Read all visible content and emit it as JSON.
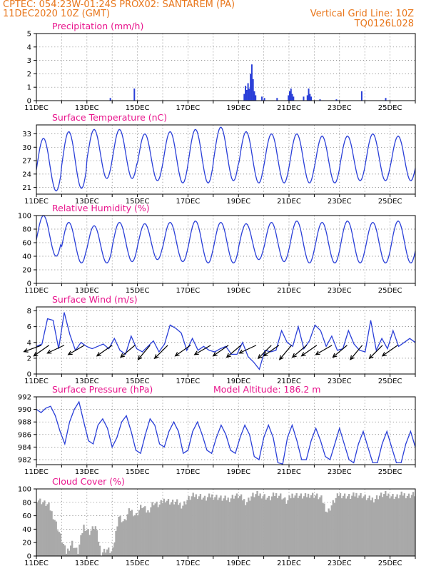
{
  "header": {
    "station": "CPTEC:   054:23W-01:24S   PROX02: SANTAREM (PA)",
    "date": "11DEC2020 10Z (GMT)",
    "grid_line": "Vertical Grid Line: 10Z",
    "code": "TQ0126L028"
  },
  "colors": {
    "header": "#e8761b",
    "title": "#e8148c",
    "line": "#2a3fd8",
    "cloud": "#a9a9a9",
    "arrow": "#000000"
  },
  "chart_data": [
    {
      "type": "bar",
      "title": "Precipitation (mm/h)",
      "ylim": [
        0,
        5
      ],
      "yticks": [
        "0",
        "1",
        "2",
        "3",
        "4",
        "5"
      ],
      "xticks": [
        "11DEC",
        "13DEC",
        "15DEC",
        "17DEC",
        "19DEC",
        "21DEC",
        "23DEC",
        "25DEC"
      ],
      "x_range_days": [
        0,
        15
      ],
      "bars": [
        [
          2.9,
          0.2
        ],
        [
          3.85,
          0.9
        ],
        [
          8.2,
          0.5
        ],
        [
          8.25,
          1.1
        ],
        [
          8.3,
          0.8
        ],
        [
          8.35,
          1.3
        ],
        [
          8.4,
          0.9
        ],
        [
          8.45,
          2.0
        ],
        [
          8.5,
          2.7
        ],
        [
          8.55,
          1.6
        ],
        [
          8.6,
          0.7
        ],
        [
          8.65,
          0.4
        ],
        [
          8.9,
          0.3
        ],
        [
          9.0,
          0.2
        ],
        [
          9.5,
          0.2
        ],
        [
          9.95,
          0.4
        ],
        [
          10.0,
          0.7
        ],
        [
          10.05,
          0.9
        ],
        [
          10.1,
          0.5
        ],
        [
          10.15,
          0.3
        ],
        [
          10.55,
          0.3
        ],
        [
          10.7,
          0.4
        ],
        [
          10.75,
          0.9
        ],
        [
          10.8,
          0.5
        ],
        [
          10.85,
          0.3
        ],
        [
          11.2,
          0.1
        ],
        [
          11.85,
          0.1
        ],
        [
          12.85,
          0.7
        ],
        [
          13.8,
          0.2
        ]
      ]
    },
    {
      "type": "line",
      "title": "Surface Temperature (nC)",
      "ylim": [
        19.5,
        35
      ],
      "yticks": [
        "21",
        "24",
        "27",
        "30",
        "33"
      ],
      "ytick_values": [
        21,
        24,
        27,
        30,
        33
      ],
      "xticks": [
        "11DEC",
        "13DEC",
        "15DEC",
        "17DEC",
        "19DEC",
        "21DEC",
        "23DEC",
        "25DEC"
      ],
      "x_range_days": [
        0,
        15
      ],
      "maxima": [
        32.0,
        33.5,
        34.0,
        34.0,
        33.0,
        33.5,
        34.0,
        34.5,
        33.5,
        33.0,
        33.0,
        32.5,
        32.5,
        33.0,
        32.5
      ],
      "minima": [
        20.2,
        20.8,
        23.0,
        23.0,
        22.5,
        22.0,
        22.0,
        22.5,
        22.0,
        22.0,
        22.0,
        22.0,
        22.5,
        22.5,
        22.5
      ]
    },
    {
      "type": "line",
      "title": "Relative Humidity (%)",
      "ylim": [
        0,
        100
      ],
      "yticks": [
        "0",
        "20",
        "40",
        "60",
        "80",
        "100"
      ],
      "ytick_values": [
        0,
        20,
        40,
        60,
        80,
        100
      ],
      "xticks": [
        "11DEC",
        "13DEC",
        "15DEC",
        "17DEC",
        "19DEC",
        "21DEC",
        "23DEC",
        "25DEC"
      ],
      "x_range_days": [
        0,
        15
      ],
      "maxima": [
        100,
        90,
        85,
        90,
        88,
        90,
        92,
        90,
        88,
        90,
        92,
        90,
        92,
        90,
        92
      ],
      "minima": [
        40,
        30,
        30,
        32,
        35,
        32,
        30,
        30,
        35,
        32,
        30,
        30,
        30,
        30,
        30
      ]
    },
    {
      "type": "line",
      "title": "Surface Wind (m/s)",
      "ylim": [
        0,
        8.5
      ],
      "yticks": [
        "0",
        "2",
        "4",
        "6",
        "8"
      ],
      "ytick_values": [
        0,
        2,
        4,
        6,
        8
      ],
      "xticks": [
        "11DEC",
        "13DEC",
        "15DEC",
        "17DEC",
        "19DEC",
        "21DEC",
        "23DEC",
        "25DEC"
      ],
      "x_range_days": [
        0,
        15
      ],
      "speed": [
        3.5,
        3.8,
        7.0,
        6.8,
        3.2,
        7.8,
        5.0,
        3.0,
        4.0,
        3.5,
        3.2,
        3.5,
        3.8,
        3.2,
        4.5,
        3.0,
        2.5,
        4.8,
        3.2,
        2.8,
        3.5,
        4.2,
        2.8,
        3.8,
        6.2,
        5.8,
        5.2,
        3.0,
        4.5,
        3.0,
        3.5,
        3.0,
        2.8,
        3.2,
        3.5,
        2.5,
        2.5,
        4.0,
        2.2,
        1.5,
        0.6,
        3.0,
        2.8,
        3.0,
        5.5,
        4.0,
        3.5,
        6.0,
        3.2,
        4.2,
        6.2,
        5.5,
        3.5,
        4.8,
        3.0,
        3.2,
        5.5,
        3.8,
        3.0,
        2.8,
        6.8,
        3.0,
        4.5,
        3.2,
        5.5,
        3.5,
        4.0,
        4.5,
        4.0
      ],
      "arrow_days": [
        0.2,
        0.5,
        1.1,
        1.9,
        3.0,
        3.9,
        4.5,
        5.2,
        6.1,
        6.9,
        7.6,
        8.1,
        8.7,
        9.3,
        9.6,
        10.1,
        10.7,
        11.1,
        11.7,
        12.3,
        12.9,
        13.7,
        14.3
      ],
      "arrow_dir_deg": [
        200,
        215,
        205,
        210,
        215,
        220,
        230,
        225,
        215,
        210,
        215,
        220,
        205,
        225,
        215,
        230,
        220,
        215,
        210,
        220,
        230,
        225,
        215
      ]
    },
    {
      "type": "line",
      "title": "Surface Pressure (hPa)",
      "annotation": "Model Altitude: 186.2 m",
      "ylim": [
        981.2,
        992
      ],
      "yticks": [
        "982",
        "984",
        "986",
        "988",
        "990",
        "992"
      ],
      "ytick_values": [
        982,
        984,
        986,
        988,
        990,
        992
      ],
      "xticks": [
        "11DEC",
        "13DEC",
        "15DEC",
        "17DEC",
        "19DEC",
        "21DEC",
        "23DEC",
        "25DEC"
      ],
      "x_range_days": [
        0,
        15
      ],
      "series": [
        990,
        989.5,
        990.2,
        990.5,
        989,
        986.5,
        984.5,
        988,
        990,
        991.2,
        988,
        985,
        984.5,
        987.5,
        988.5,
        987,
        984,
        985.5,
        988,
        989,
        986.5,
        983.5,
        983,
        986,
        988.5,
        987.5,
        984.5,
        984,
        986.5,
        988,
        986.5,
        983,
        983.5,
        986.5,
        988,
        986,
        983.5,
        983,
        985.5,
        987.5,
        986,
        983.5,
        983,
        985.5,
        987.5,
        986,
        982.5,
        982,
        985.5,
        987.5,
        985.5,
        981.5,
        981.3,
        985.5,
        987.5,
        985,
        982,
        982,
        985,
        987,
        985,
        982.5,
        982,
        984.5,
        987,
        984.5,
        982,
        981.5,
        984.5,
        986.5,
        984,
        981.5,
        981.5,
        984.5,
        986.5,
        984,
        981.5,
        981.5,
        984.5,
        986.5,
        984
      ]
    },
    {
      "type": "bar",
      "title": "Cloud Cover (%)",
      "ylim": [
        0,
        100
      ],
      "yticks": [
        "0",
        "20",
        "40",
        "60",
        "80",
        "100"
      ],
      "ytick_values": [
        0,
        20,
        40,
        60,
        80,
        100
      ],
      "xticks": [
        "11DEC",
        "13DEC",
        "15DEC",
        "17DEC",
        "19DEC",
        "21DEC",
        "23DEC",
        "25DEC"
      ],
      "x_range_days": [
        0,
        15
      ],
      "series": [
        85,
        80,
        75,
        55,
        30,
        5,
        20,
        5,
        45,
        35,
        45,
        5,
        10,
        5,
        60,
        50,
        70,
        60,
        75,
        65,
        80,
        75,
        85,
        80,
        80,
        75,
        85,
        90,
        90,
        85,
        90,
        88,
        85,
        85,
        90,
        88,
        80,
        90,
        92,
        90,
        85,
        92,
        90,
        80,
        92,
        90,
        88,
        92,
        90,
        85,
        65,
        80,
        92,
        90,
        88,
        92,
        90,
        85,
        85,
        90,
        92,
        90,
        88,
        92,
        90,
        92
      ]
    }
  ]
}
